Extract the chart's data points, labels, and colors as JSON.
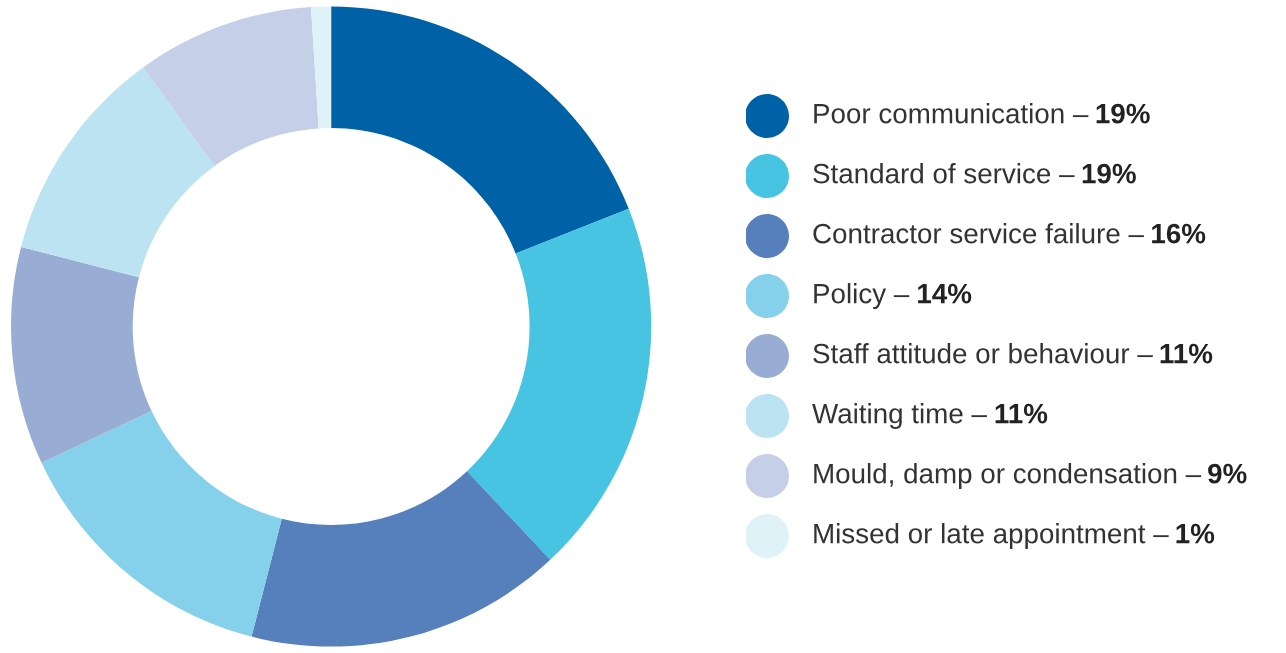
{
  "chart_data": {
    "type": "donut",
    "categories": [
      "Poor communication –",
      "Standard of service –",
      "Contractor service failure –",
      "Policy –",
      "Staff attitude or behaviour –",
      "Waiting time –",
      "Mould, damp or condensation –",
      "Missed or late appointment –"
    ],
    "values": [
      19,
      19,
      16,
      14,
      11,
      11,
      9,
      1
    ],
    "value_labels": [
      "19%",
      "19%",
      "16%",
      "14%",
      "11%",
      "11%",
      "9%",
      "1%"
    ],
    "colors": [
      "#0062a6",
      "#48c4e3",
      "#5580bc",
      "#85d0ea",
      "#99acd4",
      "#bbe3f1",
      "#c5cfe7",
      "#dff2f8"
    ],
    "legend": "right"
  }
}
